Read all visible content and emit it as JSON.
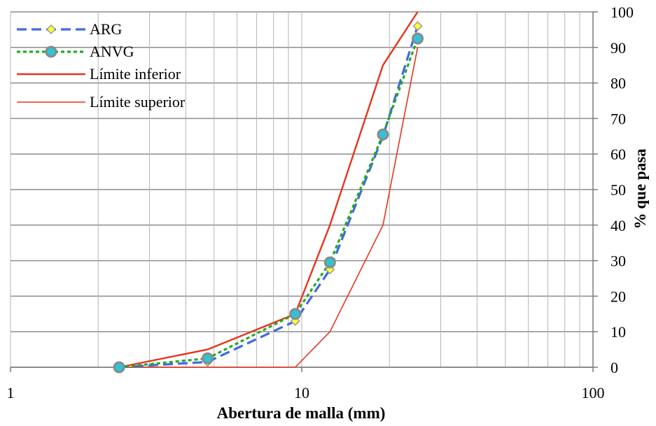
{
  "chart_data": {
    "type": "line",
    "title": "",
    "xlabel": "Abertura de malla (mm)",
    "ylabel": "% que pasa",
    "xscale": "log",
    "xlim": [
      1,
      100
    ],
    "ylim": [
      0,
      100
    ],
    "grid": true,
    "x_tick_labels": [
      "1",
      "10",
      "100"
    ],
    "y_tick_labels": [
      "0",
      "10",
      "20",
      "30",
      "40",
      "50",
      "60",
      "70",
      "80",
      "90",
      "100"
    ],
    "y_axis_position": "right",
    "legend_position": "top-left",
    "series": [
      {
        "name": "ARG",
        "color": "#4169E1",
        "style": "dashed",
        "marker": "diamond",
        "marker_fill": "#FFFF33",
        "x": [
          2.36,
          4.75,
          9.5,
          12.5,
          19,
          25
        ],
        "y": [
          0,
          1.5,
          13,
          27.5,
          65,
          96
        ]
      },
      {
        "name": "ANVG",
        "color": "#22AA22",
        "style": "dotted",
        "marker": "circle",
        "marker_fill": "#2EC4D6",
        "x": [
          2.36,
          4.75,
          9.5,
          12.5,
          19,
          25
        ],
        "y": [
          0,
          2.5,
          15,
          29.5,
          65.5,
          92.5
        ]
      },
      {
        "name": "Límite inferior",
        "color": "#E8341C",
        "style": "solid",
        "x": [
          2.36,
          4.75,
          9.5,
          12.5,
          19,
          25
        ],
        "y": [
          0,
          5,
          15,
          40,
          85,
          100
        ]
      },
      {
        "name": "Límite superior",
        "color": "#E8341C",
        "style": "solid-thin",
        "x": [
          2.36,
          9.5,
          12.5,
          19,
          25
        ],
        "y": [
          0,
          0,
          10,
          40,
          90
        ]
      }
    ]
  }
}
